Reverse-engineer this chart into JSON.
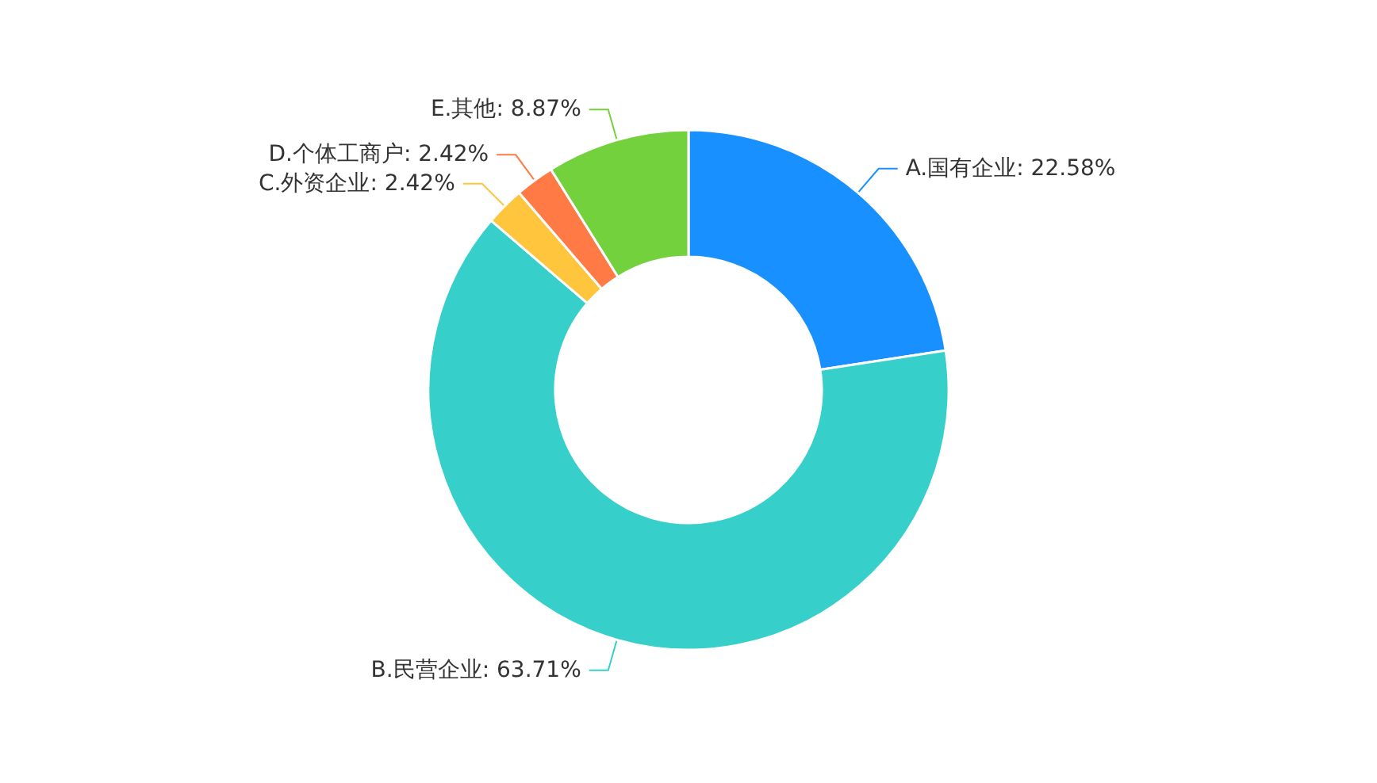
{
  "chart_data": {
    "type": "donut",
    "categories": [
      "A.国有企业",
      "B.民营企业",
      "C.外资企业",
      "D.个体工商户",
      "E.其他"
    ],
    "values": [
      22.58,
      63.71,
      2.42,
      2.42,
      8.87
    ],
    "value_labels": [
      "22.58%",
      "63.71%",
      "2.42%",
      "2.42%",
      "8.87%"
    ],
    "colors": [
      "#1890ff",
      "#36cfc9",
      "#ffc53d",
      "#ff7a45",
      "#73d13d"
    ],
    "legend": false
  }
}
